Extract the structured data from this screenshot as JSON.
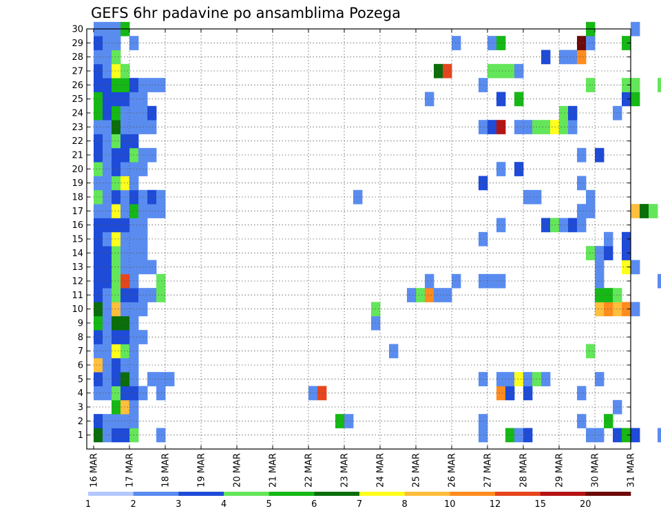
{
  "chart_data": {
    "type": "heatmap",
    "title": "GEFS 6hr padavine po ansamblima Pozega",
    "x_tick_labels": [
      "16 MAR",
      "17 MAR",
      "18 MAR",
      "19 MAR",
      "20 MAR",
      "21 MAR",
      "22 MAR",
      "23 MAR",
      "24 MAR",
      "25 MAR",
      "26 MAR",
      "27 MAR",
      "28 MAR",
      "29 MAR",
      "30 MAR",
      "31 MAR"
    ],
    "y_tick_labels": [
      "1",
      "2",
      "3",
      "4",
      "5",
      "6",
      "7",
      "8",
      "9",
      "10",
      "11",
      "12",
      "13",
      "14",
      "15",
      "16",
      "17",
      "18",
      "19",
      "20",
      "21",
      "22",
      "23",
      "24",
      "25",
      "26",
      "27",
      "28",
      "29",
      "30"
    ],
    "x_range": [
      "16 MAR",
      "31 MAR"
    ],
    "y_range": [
      0,
      30
    ],
    "steps_per_day": 4,
    "grid": true,
    "colorbar": {
      "levels": [
        "1",
        "2",
        "3",
        "4",
        "5",
        "6",
        "7",
        "8",
        "10",
        "12",
        "15",
        "20"
      ],
      "colors": [
        "#b4c8ff",
        "#5a8cf0",
        "#1e4bd7",
        "#64e65a",
        "#16b816",
        "#0a6e0a",
        "#ffff1e",
        "#ffbe3c",
        "#ff8c1e",
        "#e6461e",
        "#b41414",
        "#6e0a0a"
      ]
    },
    "cells": [
      [
        0,
        0,
        5
      ],
      [
        0,
        1,
        2
      ],
      [
        0,
        3,
        1
      ],
      [
        0,
        4,
        2
      ],
      [
        0,
        5,
        7
      ],
      [
        0,
        6,
        1
      ],
      [
        0,
        7,
        2
      ],
      [
        0,
        8,
        4
      ],
      [
        0,
        9,
        5
      ],
      [
        0,
        10,
        2
      ],
      [
        0,
        11,
        2
      ],
      [
        0,
        12,
        2
      ],
      [
        0,
        13,
        2
      ],
      [
        0,
        14,
        2
      ],
      [
        0,
        15,
        2
      ],
      [
        0,
        16,
        1
      ],
      [
        0,
        17,
        3
      ],
      [
        0,
        18,
        1
      ],
      [
        0,
        19,
        3
      ],
      [
        0,
        20,
        2
      ],
      [
        0,
        21,
        2
      ],
      [
        0,
        22,
        1
      ],
      [
        0,
        23,
        4
      ],
      [
        0,
        24,
        4
      ],
      [
        0,
        25,
        2
      ],
      [
        0,
        26,
        2
      ],
      [
        0,
        27,
        1
      ],
      [
        0,
        28,
        2
      ],
      [
        0,
        29,
        1
      ],
      [
        1,
        0,
        1
      ],
      [
        1,
        1,
        1
      ],
      [
        1,
        3,
        1
      ],
      [
        1,
        4,
        1
      ],
      [
        1,
        5,
        1
      ],
      [
        1,
        6,
        1
      ],
      [
        1,
        7,
        1
      ],
      [
        1,
        8,
        1
      ],
      [
        1,
        9,
        1
      ],
      [
        1,
        10,
        1
      ],
      [
        1,
        11,
        2
      ],
      [
        1,
        12,
        2
      ],
      [
        1,
        13,
        2
      ],
      [
        1,
        14,
        1
      ],
      [
        1,
        15,
        2
      ],
      [
        1,
        16,
        1
      ],
      [
        1,
        17,
        1
      ],
      [
        1,
        18,
        1
      ],
      [
        1,
        19,
        1
      ],
      [
        1,
        20,
        1
      ],
      [
        1,
        21,
        1
      ],
      [
        1,
        22,
        1
      ],
      [
        1,
        23,
        2
      ],
      [
        1,
        24,
        2
      ],
      [
        1,
        25,
        2
      ],
      [
        1,
        26,
        1
      ],
      [
        1,
        27,
        1
      ],
      [
        1,
        28,
        1
      ],
      [
        1,
        29,
        1
      ],
      [
        2,
        0,
        2
      ],
      [
        2,
        1,
        1
      ],
      [
        2,
        2,
        4
      ],
      [
        2,
        3,
        3
      ],
      [
        2,
        4,
        2
      ],
      [
        2,
        5,
        2
      ],
      [
        2,
        6,
        6
      ],
      [
        2,
        7,
        2
      ],
      [
        2,
        8,
        5
      ],
      [
        2,
        9,
        7
      ],
      [
        2,
        10,
        3
      ],
      [
        2,
        11,
        3
      ],
      [
        2,
        12,
        3
      ],
      [
        2,
        13,
        3
      ],
      [
        2,
        14,
        6
      ],
      [
        2,
        15,
        2
      ],
      [
        2,
        16,
        6
      ],
      [
        2,
        17,
        2
      ],
      [
        2,
        18,
        3
      ],
      [
        2,
        19,
        2
      ],
      [
        2,
        20,
        2
      ],
      [
        2,
        21,
        3
      ],
      [
        2,
        22,
        5
      ],
      [
        2,
        23,
        4
      ],
      [
        2,
        24,
        2
      ],
      [
        2,
        25,
        4
      ],
      [
        2,
        26,
        6
      ],
      [
        2,
        27,
        3
      ],
      [
        2,
        28,
        1
      ],
      [
        2,
        29,
        1
      ],
      [
        3,
        0,
        2
      ],
      [
        3,
        1,
        1
      ],
      [
        3,
        2,
        7
      ],
      [
        3,
        3,
        2
      ],
      [
        3,
        4,
        5
      ],
      [
        3,
        5,
        1
      ],
      [
        3,
        6,
        3
      ],
      [
        3,
        7,
        2
      ],
      [
        3,
        8,
        5
      ],
      [
        3,
        9,
        1
      ],
      [
        3,
        10,
        2
      ],
      [
        3,
        11,
        9
      ],
      [
        3,
        12,
        1
      ],
      [
        3,
        13,
        1
      ],
      [
        3,
        14,
        1
      ],
      [
        3,
        15,
        2
      ],
      [
        3,
        16,
        1
      ],
      [
        3,
        17,
        1
      ],
      [
        3,
        18,
        6
      ],
      [
        3,
        19,
        1
      ],
      [
        3,
        20,
        2
      ],
      [
        3,
        21,
        2
      ],
      [
        3,
        22,
        1
      ],
      [
        3,
        23,
        1
      ],
      [
        3,
        24,
        2
      ],
      [
        3,
        25,
        4
      ],
      [
        3,
        26,
        3
      ],
      [
        3,
        29,
        4
      ],
      [
        4,
        0,
        3
      ],
      [
        4,
        1,
        1
      ],
      [
        4,
        2,
        1
      ],
      [
        4,
        3,
        2
      ],
      [
        4,
        4,
        1
      ],
      [
        4,
        5,
        1
      ],
      [
        4,
        6,
        1
      ],
      [
        4,
        7,
        1
      ],
      [
        4,
        8,
        1
      ],
      [
        4,
        9,
        1
      ],
      [
        4,
        10,
        2
      ],
      [
        4,
        11,
        1
      ],
      [
        4,
        12,
        1
      ],
      [
        4,
        13,
        1
      ],
      [
        4,
        14,
        1
      ],
      [
        4,
        15,
        1
      ],
      [
        4,
        16,
        4
      ],
      [
        4,
        17,
        2
      ],
      [
        4,
        18,
        1
      ],
      [
        4,
        19,
        1
      ],
      [
        4,
        20,
        3
      ],
      [
        4,
        21,
        2
      ],
      [
        4,
        22,
        1
      ],
      [
        4,
        23,
        1
      ],
      [
        4,
        24,
        1
      ],
      [
        4,
        25,
        2
      ],
      [
        4,
        28,
        1
      ],
      [
        5,
        3,
        1
      ],
      [
        5,
        7,
        1
      ],
      [
        5,
        9,
        1
      ],
      [
        5,
        10,
        1
      ],
      [
        5,
        12,
        1
      ],
      [
        5,
        13,
        1
      ],
      [
        5,
        14,
        1
      ],
      [
        5,
        15,
        1
      ],
      [
        5,
        16,
        1
      ],
      [
        5,
        17,
        1
      ],
      [
        5,
        19,
        1
      ],
      [
        5,
        20,
        1
      ],
      [
        5,
        22,
        1
      ],
      [
        5,
        23,
        1
      ],
      [
        5,
        24,
        1
      ],
      [
        5,
        25,
        1
      ],
      [
        6,
        4,
        1
      ],
      [
        6,
        10,
        1
      ],
      [
        6,
        12,
        1
      ],
      [
        6,
        16,
        1
      ],
      [
        6,
        17,
        2
      ],
      [
        6,
        20,
        1
      ],
      [
        6,
        22,
        1
      ],
      [
        6,
        23,
        2
      ],
      [
        6,
        25,
        1
      ],
      [
        7,
        0,
        1
      ],
      [
        7,
        3,
        1
      ],
      [
        7,
        4,
        1
      ],
      [
        7,
        10,
        3
      ],
      [
        7,
        11,
        3
      ],
      [
        7,
        16,
        1
      ],
      [
        7,
        17,
        1
      ],
      [
        7,
        25,
        1
      ],
      [
        8,
        4,
        1
      ],
      [
        24,
        3,
        1
      ],
      [
        25,
        3,
        9
      ],
      [
        27,
        1,
        4
      ],
      [
        28,
        1,
        1
      ],
      [
        29,
        17,
        1
      ],
      [
        31,
        8,
        1
      ],
      [
        31,
        9,
        3
      ],
      [
        33,
        6,
        1
      ],
      [
        35,
        10,
        1
      ],
      [
        36,
        10,
        3
      ],
      [
        37,
        10,
        8
      ],
      [
        37,
        11,
        1
      ],
      [
        37,
        24,
        1
      ],
      [
        38,
        10,
        1
      ],
      [
        38,
        26,
        5
      ],
      [
        39,
        10,
        1
      ],
      [
        39,
        26,
        9
      ],
      [
        40,
        11,
        1
      ],
      [
        40,
        28,
        1
      ],
      [
        43,
        0,
        1
      ],
      [
        43,
        1,
        1
      ],
      [
        43,
        4,
        1
      ],
      [
        43,
        11,
        1
      ],
      [
        43,
        14,
        1
      ],
      [
        43,
        18,
        2
      ],
      [
        43,
        22,
        1
      ],
      [
        43,
        25,
        1
      ],
      [
        44,
        11,
        1
      ],
      [
        44,
        22,
        2
      ],
      [
        44,
        26,
        3
      ],
      [
        44,
        28,
        1
      ],
      [
        45,
        3,
        8
      ],
      [
        45,
        4,
        1
      ],
      [
        45,
        11,
        1
      ],
      [
        45,
        15,
        1
      ],
      [
        45,
        19,
        1
      ],
      [
        45,
        22,
        10
      ],
      [
        45,
        24,
        2
      ],
      [
        45,
        26,
        3
      ],
      [
        45,
        28,
        4
      ],
      [
        46,
        0,
        4
      ],
      [
        46,
        3,
        2
      ],
      [
        46,
        4,
        1
      ],
      [
        46,
        26,
        3
      ],
      [
        47,
        0,
        1
      ],
      [
        47,
        4,
        6
      ],
      [
        47,
        19,
        2
      ],
      [
        47,
        22,
        1
      ],
      [
        47,
        24,
        4
      ],
      [
        47,
        26,
        1
      ],
      [
        48,
        0,
        2
      ],
      [
        48,
        3,
        2
      ],
      [
        48,
        4,
        1
      ],
      [
        48,
        17,
        1
      ],
      [
        48,
        22,
        1
      ],
      [
        49,
        4,
        3
      ],
      [
        49,
        17,
        1
      ],
      [
        49,
        22,
        3
      ],
      [
        50,
        4,
        1
      ],
      [
        50,
        15,
        2
      ],
      [
        50,
        22,
        3
      ],
      [
        50,
        27,
        2
      ],
      [
        51,
        15,
        3
      ],
      [
        51,
        22,
        6
      ],
      [
        52,
        15,
        1
      ],
      [
        52,
        22,
        3
      ],
      [
        52,
        23,
        3
      ],
      [
        52,
        27,
        1
      ],
      [
        53,
        15,
        2
      ],
      [
        53,
        22,
        1
      ],
      [
        53,
        23,
        2
      ],
      [
        53,
        27,
        1
      ],
      [
        54,
        1,
        1
      ],
      [
        54,
        3,
        1
      ],
      [
        54,
        15,
        1
      ],
      [
        54,
        16,
        1
      ],
      [
        54,
        18,
        1
      ],
      [
        54,
        20,
        1
      ],
      [
        54,
        27,
        8
      ],
      [
        54,
        28,
        11
      ],
      [
        55,
        0,
        1
      ],
      [
        55,
        6,
        3
      ],
      [
        55,
        13,
        3
      ],
      [
        55,
        16,
        1
      ],
      [
        55,
        17,
        1
      ],
      [
        55,
        25,
        3
      ],
      [
        55,
        28,
        1
      ],
      [
        55,
        29,
        4
      ],
      [
        56,
        0,
        1
      ],
      [
        56,
        4,
        1
      ],
      [
        56,
        9,
        7
      ],
      [
        56,
        10,
        4
      ],
      [
        56,
        11,
        1
      ],
      [
        56,
        12,
        1
      ],
      [
        56,
        13,
        1
      ],
      [
        56,
        20,
        2
      ],
      [
        57,
        1,
        4
      ],
      [
        57,
        9,
        8
      ],
      [
        57,
        10,
        4
      ],
      [
        57,
        13,
        2
      ],
      [
        57,
        14,
        1
      ],
      [
        58,
        0,
        2
      ],
      [
        58,
        2,
        1
      ],
      [
        58,
        9,
        7
      ],
      [
        58,
        10,
        3
      ],
      [
        58,
        23,
        1
      ],
      [
        59,
        0,
        4
      ],
      [
        59,
        9,
        8
      ],
      [
        59,
        12,
        6
      ],
      [
        59,
        13,
        2
      ],
      [
        59,
        14,
        2
      ],
      [
        59,
        24,
        2
      ],
      [
        59,
        25,
        3
      ],
      [
        59,
        28,
        4
      ],
      [
        60,
        0,
        2
      ],
      [
        60,
        9,
        1
      ],
      [
        60,
        12,
        1
      ],
      [
        60,
        16,
        7
      ],
      [
        60,
        24,
        4
      ],
      [
        60,
        25,
        3
      ],
      [
        60,
        29,
        1
      ],
      [
        61,
        16,
        5
      ],
      [
        62,
        16,
        3
      ],
      [
        63,
        0,
        1
      ],
      [
        63,
        11,
        1
      ],
      [
        63,
        25,
        3
      ],
      [
        64,
        0,
        1
      ],
      [
        64,
        2,
        1
      ],
      [
        64,
        5,
        1
      ],
      [
        64,
        12,
        1
      ],
      [
        64,
        19,
        1
      ],
      [
        64,
        21,
        1
      ],
      [
        64,
        24,
        5
      ],
      [
        64,
        25,
        2
      ],
      [
        65,
        0,
        1
      ],
      [
        65,
        12,
        1
      ],
      [
        65,
        13,
        1
      ],
      [
        66,
        0,
        7
      ],
      [
        66,
        5,
        3
      ],
      [
        66,
        14,
        1
      ],
      [
        67,
        0,
        3
      ],
      [
        67,
        5,
        1
      ],
      [
        67,
        14,
        2
      ],
      [
        67,
        22,
        2
      ],
      [
        67,
        25,
        1
      ],
      [
        68,
        14,
        1
      ],
      [
        68,
        22,
        3
      ],
      [
        68,
        25,
        4
      ],
      [
        69,
        3,
        1
      ],
      [
        69,
        19,
        2
      ],
      [
        69,
        22,
        8
      ]
    ]
  }
}
